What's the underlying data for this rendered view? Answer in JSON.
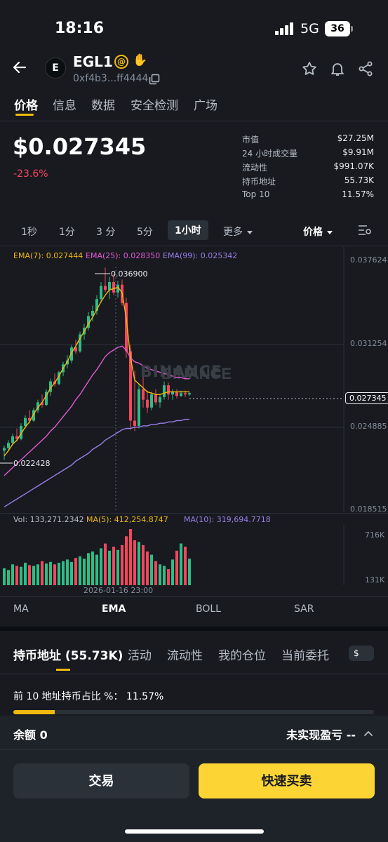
{
  "status": {
    "time": "18:16",
    "network": "5G",
    "battery": "36"
  },
  "coin": {
    "logo": "E",
    "name": "EGL1",
    "address": "0xf4b3...ff4444"
  },
  "tabs": [
    "价格",
    "信息",
    "数据",
    "安全检测",
    "广场"
  ],
  "price": {
    "value": "$0.027345",
    "change": "-23.6%"
  },
  "stats": [
    {
      "label": "市值",
      "value": "$27.25M"
    },
    {
      "label": "24 小时成交量",
      "value": "$9.91M"
    },
    {
      "label": "流动性",
      "value": "$991.07K"
    },
    {
      "label": "持币地址",
      "value": "55.73K"
    },
    {
      "label": "Top 10",
      "value": "11.57%"
    }
  ],
  "intervals": [
    "1秒",
    "1分",
    "3 分",
    "5分",
    "1小时"
  ],
  "interval_more": "更多",
  "price_mode": "价格",
  "ema_legend": {
    "ema7": "EMA(7): 0.027444",
    "ema25": "EMA(25): 0.028350",
    "ema99": "EMA(99): 0.025342"
  },
  "colors": {
    "up": "#2ebd85",
    "down": "#f6465d",
    "ema7": "#f0b90b",
    "ema25": "#e35ad6",
    "ema99": "#9b7de8",
    "accent": "#fcd535"
  },
  "chart_data": {
    "type": "candlestick",
    "y_axis_labels": [
      "0.037624",
      "0.031254",
      "0.024885",
      "0.018515"
    ],
    "ylim": [
      0.018515,
      0.037624
    ],
    "current_price_label": "0.027345",
    "high_marker": "0.036900",
    "low_marker": "0.022428",
    "watermark": "BINANCE",
    "x_label": "2026-01-16 23:00",
    "volume_legend": {
      "vol": "Vol: 133,271.2342",
      "ma5": "MA(5): 412,254.8747",
      "ma10": "MA(10): 319,694.7718"
    },
    "volume_axis": [
      "716K",
      "131K"
    ],
    "candles": [
      {
        "o": 0.0229,
        "h": 0.0233,
        "l": 0.0222,
        "c": 0.0231
      },
      {
        "o": 0.0231,
        "h": 0.0237,
        "l": 0.0229,
        "c": 0.0235
      },
      {
        "o": 0.0235,
        "h": 0.0242,
        "l": 0.0233,
        "c": 0.024
      },
      {
        "o": 0.024,
        "h": 0.0246,
        "l": 0.0236,
        "c": 0.0238
      },
      {
        "o": 0.0238,
        "h": 0.025,
        "l": 0.0237,
        "c": 0.0248
      },
      {
        "o": 0.0248,
        "h": 0.0256,
        "l": 0.0246,
        "c": 0.0254
      },
      {
        "o": 0.0254,
        "h": 0.026,
        "l": 0.025,
        "c": 0.0252
      },
      {
        "o": 0.0252,
        "h": 0.0262,
        "l": 0.0251,
        "c": 0.026
      },
      {
        "o": 0.026,
        "h": 0.0268,
        "l": 0.0258,
        "c": 0.0266
      },
      {
        "o": 0.0266,
        "h": 0.0272,
        "l": 0.0262,
        "c": 0.0264
      },
      {
        "o": 0.0264,
        "h": 0.0276,
        "l": 0.0263,
        "c": 0.0274
      },
      {
        "o": 0.0274,
        "h": 0.0284,
        "l": 0.0271,
        "c": 0.0282
      },
      {
        "o": 0.0282,
        "h": 0.0288,
        "l": 0.0278,
        "c": 0.028
      },
      {
        "o": 0.028,
        "h": 0.029,
        "l": 0.0279,
        "c": 0.0289
      },
      {
        "o": 0.0289,
        "h": 0.0297,
        "l": 0.0286,
        "c": 0.0295
      },
      {
        "o": 0.0295,
        "h": 0.0302,
        "l": 0.0292,
        "c": 0.0298
      },
      {
        "o": 0.0298,
        "h": 0.031,
        "l": 0.0296,
        "c": 0.0308
      },
      {
        "o": 0.0308,
        "h": 0.0314,
        "l": 0.0303,
        "c": 0.0305
      },
      {
        "o": 0.0305,
        "h": 0.032,
        "l": 0.0304,
        "c": 0.0318
      },
      {
        "o": 0.0318,
        "h": 0.0326,
        "l": 0.0314,
        "c": 0.0323
      },
      {
        "o": 0.0323,
        "h": 0.0335,
        "l": 0.0321,
        "c": 0.0332
      },
      {
        "o": 0.0332,
        "h": 0.034,
        "l": 0.0328,
        "c": 0.0336
      },
      {
        "o": 0.0336,
        "h": 0.0348,
        "l": 0.0333,
        "c": 0.0345
      },
      {
        "o": 0.0345,
        "h": 0.0358,
        "l": 0.0342,
        "c": 0.0355
      },
      {
        "o": 0.0355,
        "h": 0.0369,
        "l": 0.035,
        "c": 0.0352
      },
      {
        "o": 0.0352,
        "h": 0.0362,
        "l": 0.0345,
        "c": 0.0358
      },
      {
        "o": 0.0358,
        "h": 0.0364,
        "l": 0.0348,
        "c": 0.035
      },
      {
        "o": 0.035,
        "h": 0.0359,
        "l": 0.0346,
        "c": 0.0356
      },
      {
        "o": 0.0356,
        "h": 0.036,
        "l": 0.034,
        "c": 0.0342
      },
      {
        "o": 0.0342,
        "h": 0.0346,
        "l": 0.03,
        "c": 0.0305
      },
      {
        "o": 0.0305,
        "h": 0.031,
        "l": 0.0245,
        "c": 0.0252
      },
      {
        "o": 0.0252,
        "h": 0.029,
        "l": 0.0244,
        "c": 0.0248
      },
      {
        "o": 0.0248,
        "h": 0.028,
        "l": 0.0246,
        "c": 0.0276
      },
      {
        "o": 0.0276,
        "h": 0.0286,
        "l": 0.0262,
        "c": 0.0268
      },
      {
        "o": 0.0268,
        "h": 0.0275,
        "l": 0.0258,
        "c": 0.0262
      },
      {
        "o": 0.0262,
        "h": 0.0274,
        "l": 0.026,
        "c": 0.0272
      },
      {
        "o": 0.0272,
        "h": 0.0276,
        "l": 0.0264,
        "c": 0.0266
      },
      {
        "o": 0.0266,
        "h": 0.0272,
        "l": 0.0262,
        "c": 0.027
      },
      {
        "o": 0.027,
        "h": 0.0282,
        "l": 0.0268,
        "c": 0.0279
      },
      {
        "o": 0.0279,
        "h": 0.0281,
        "l": 0.0268,
        "c": 0.0272
      },
      {
        "o": 0.0272,
        "h": 0.0276,
        "l": 0.0268,
        "c": 0.0274
      },
      {
        "o": 0.0274,
        "h": 0.0276,
        "l": 0.0269,
        "c": 0.0271
      },
      {
        "o": 0.0271,
        "h": 0.0275,
        "l": 0.027,
        "c": 0.0273
      },
      {
        "o": 0.0273,
        "h": 0.0275,
        "l": 0.027,
        "c": 0.0272
      },
      {
        "o": 0.0272,
        "h": 0.0274,
        "l": 0.0271,
        "c": 0.0273
      }
    ],
    "volumes": [
      210,
      190,
      260,
      240,
      230,
      280,
      250,
      240,
      260,
      300,
      270,
      290,
      260,
      280,
      300,
      320,
      290,
      340,
      360,
      330,
      400,
      420,
      380,
      460,
      520,
      430,
      480,
      440,
      500,
      610,
      700,
      560,
      540,
      500,
      420,
      380,
      300,
      260,
      240,
      200,
      320,
      430,
      520,
      480,
      330
    ],
    "ema7_series": [
      0.0225,
      0.0229,
      0.0234,
      0.0237,
      0.0242,
      0.0247,
      0.0251,
      0.0257,
      0.0262,
      0.0266,
      0.0271,
      0.0277,
      0.0281,
      0.0286,
      0.0292,
      0.0297,
      0.0304,
      0.0309,
      0.0315,
      0.032,
      0.0326,
      0.0331,
      0.0337,
      0.0343,
      0.0348,
      0.0352,
      0.0353,
      0.0354,
      0.035,
      0.033,
      0.03,
      0.0283,
      0.028,
      0.0277,
      0.0274,
      0.0273,
      0.0272,
      0.0272,
      0.0273,
      0.0274,
      0.0274,
      0.0274,
      0.0274,
      0.0274,
      0.0274
    ],
    "ema25_series": [
      0.021,
      0.0213,
      0.0216,
      0.0219,
      0.0222,
      0.0225,
      0.0228,
      0.0231,
      0.0234,
      0.0237,
      0.024,
      0.0244,
      0.0247,
      0.0251,
      0.0255,
      0.0259,
      0.0263,
      0.0268,
      0.0272,
      0.0277,
      0.0282,
      0.0287,
      0.0291,
      0.0296,
      0.0301,
      0.0304,
      0.0306,
      0.0308,
      0.0309,
      0.0306,
      0.03,
      0.0297,
      0.0296,
      0.0294,
      0.0292,
      0.0291,
      0.029,
      0.0289,
      0.0288,
      0.0287,
      0.0286,
      0.0285,
      0.0285,
      0.0284,
      0.0284
    ],
    "ema99_series": [
      0.0186,
      0.0188,
      0.019,
      0.0192,
      0.0194,
      0.0196,
      0.0198,
      0.02,
      0.0202,
      0.0204,
      0.0206,
      0.0208,
      0.021,
      0.0212,
      0.0214,
      0.0216,
      0.0218,
      0.0221,
      0.0223,
      0.0225,
      0.0227,
      0.023,
      0.0232,
      0.0234,
      0.0237,
      0.0239,
      0.0241,
      0.0243,
      0.0245,
      0.0246,
      0.0246,
      0.0247,
      0.0247,
      0.0248,
      0.0248,
      0.0249,
      0.0249,
      0.025,
      0.025,
      0.0251,
      0.0251,
      0.0252,
      0.0252,
      0.0253,
      0.0253
    ]
  },
  "indicators": [
    "MA",
    "EMA",
    "BOLL",
    "SAR"
  ],
  "sections": [
    "持币地址 (55.73K)",
    "活动",
    "流动性",
    "我的仓位",
    "当前委托"
  ],
  "currency_symbol": "$",
  "top10_text": "前 10 地址持币占比 %： 11.57%",
  "top10_fraction": 0.1157,
  "balance_label": "余额 0",
  "pnl_label": "未实现盈亏 --",
  "buttons": {
    "trade": "交易",
    "quick": "快速买卖"
  }
}
